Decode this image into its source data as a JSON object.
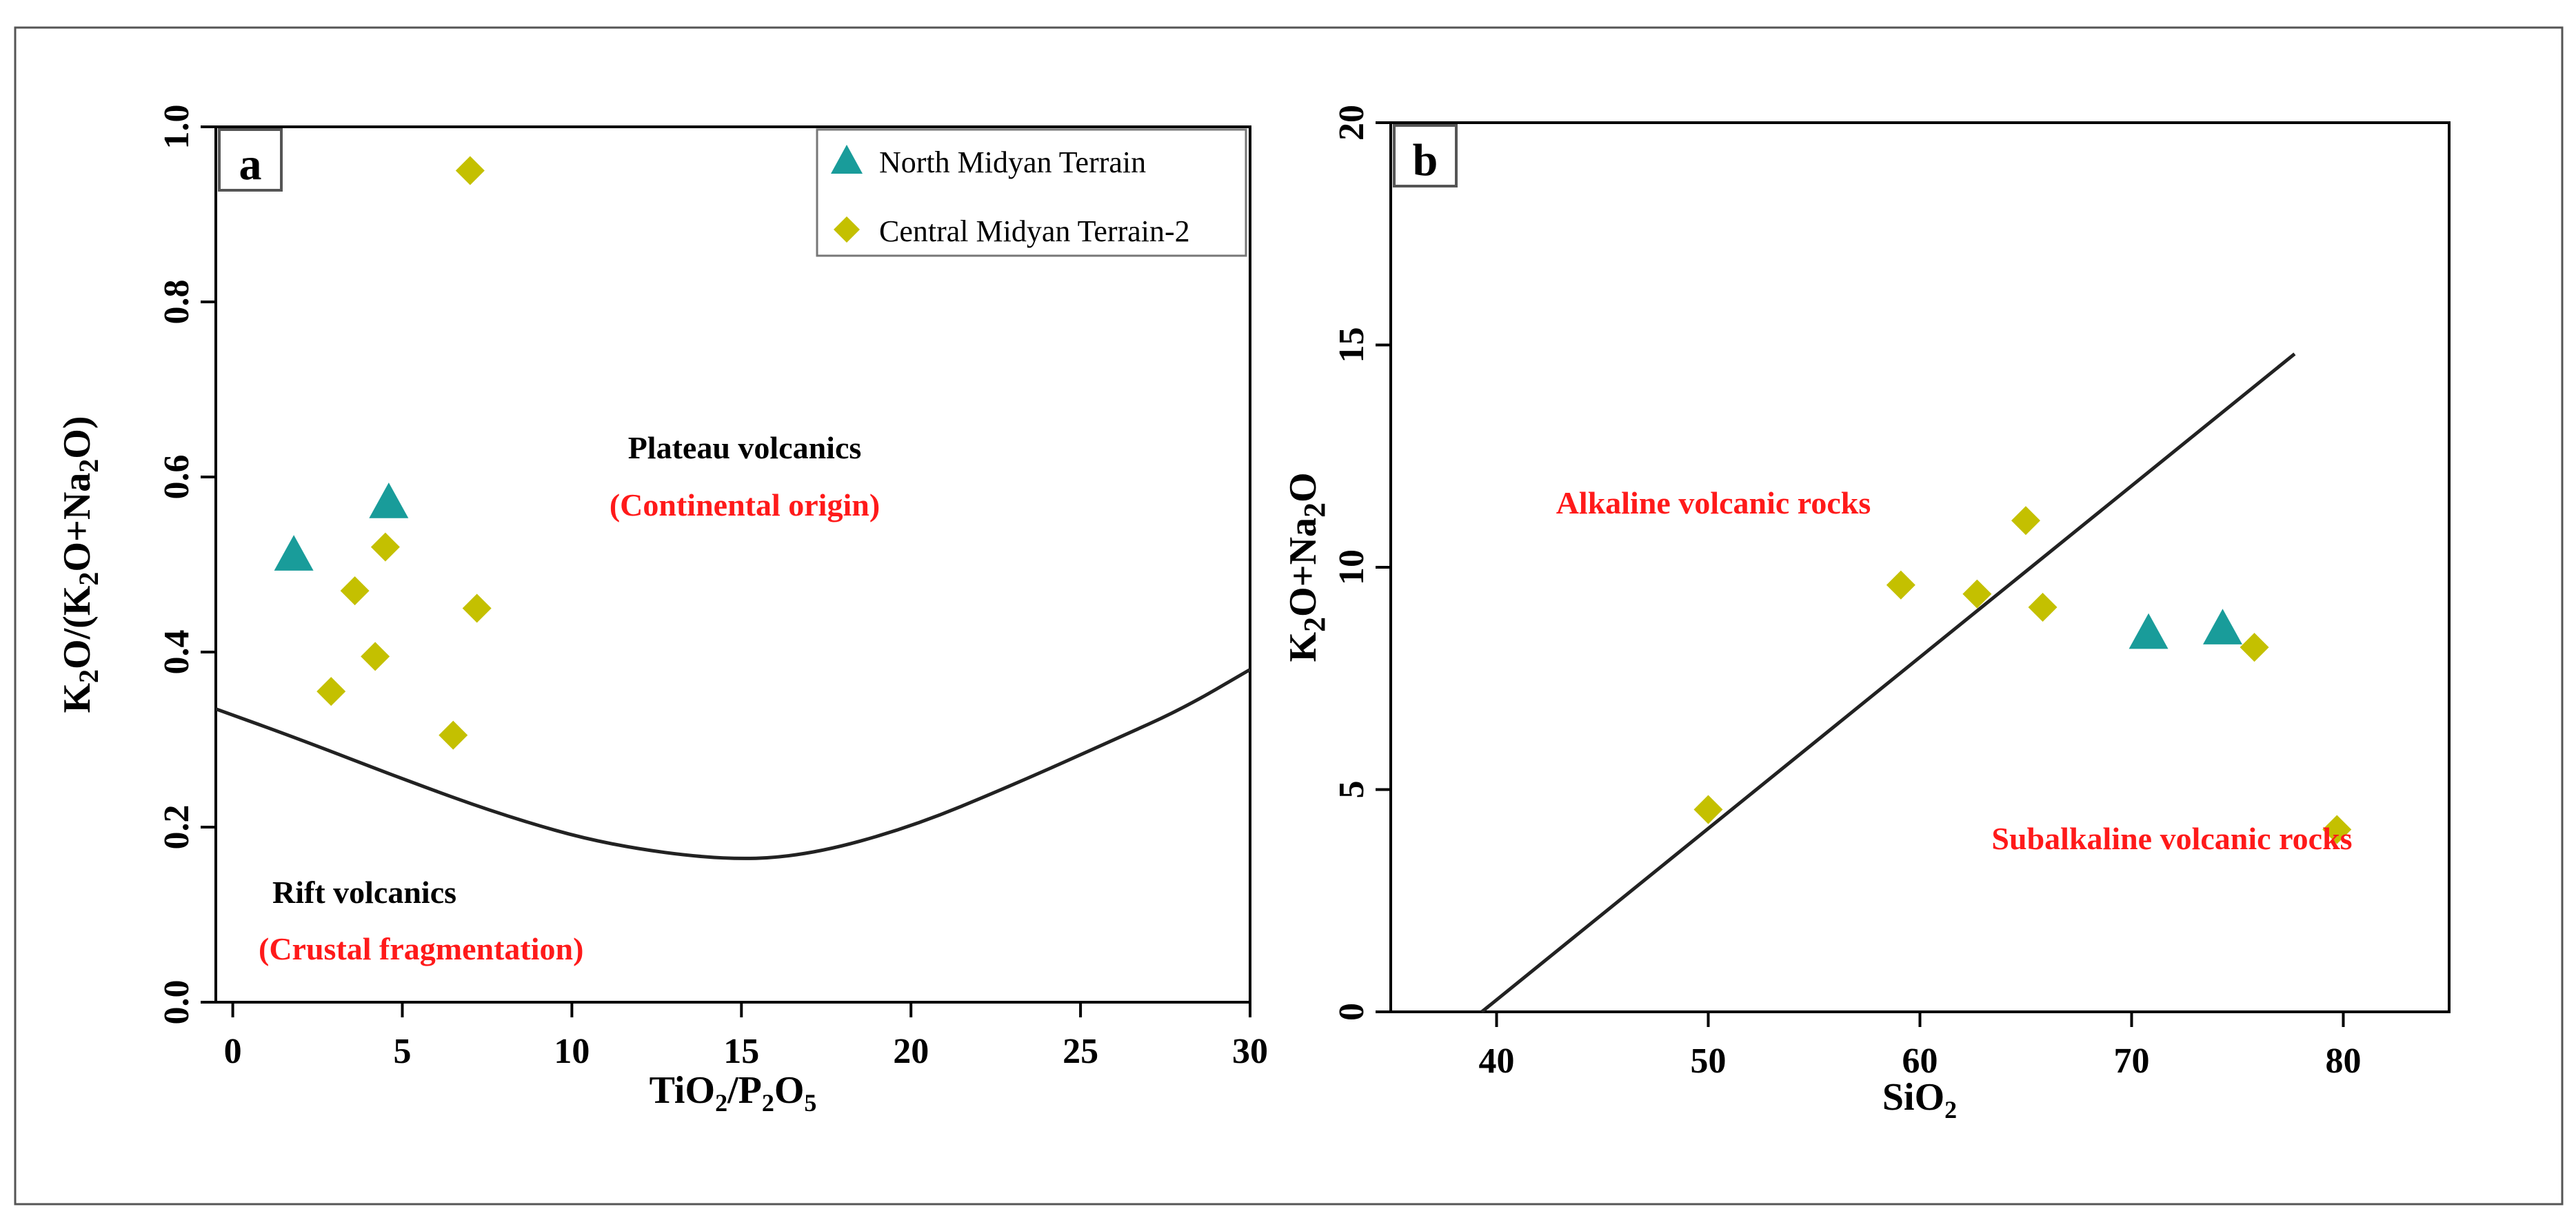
{
  "colors": {
    "north": "#199c9a",
    "central": "#c4c000",
    "annotation_red": "#ff1a1a",
    "axis": "#000000"
  },
  "chart_data": [
    {
      "panel": "a",
      "type": "scatter",
      "xlabel": "TiO2/P2O5",
      "ylabel": "K2O/(K2O+Na2O)",
      "xlim": [
        -0.5,
        30
      ],
      "ylim": [
        0,
        1
      ],
      "x_ticks": [
        0,
        5,
        10,
        15,
        20,
        25,
        30
      ],
      "x_tick_labels": [
        "0",
        "5",
        "10",
        "15",
        "20",
        "25",
        "30"
      ],
      "y_ticks": [
        0,
        0.2,
        0.4,
        0.6,
        0.8,
        1.0
      ],
      "y_tick_labels": [
        "0.0",
        "0.2",
        "0.4",
        "0.6",
        "0.8",
        "1.0"
      ],
      "legend": {
        "position": "top-right",
        "entries": [
          "North Midyan Terrain",
          "Central Midyan Terrain-2"
        ]
      },
      "series": [
        {
          "name": "North Midyan Terrain",
          "marker": "triangle",
          "points": [
            [
              1.8,
              0.51
            ],
            [
              4.6,
              0.57
            ]
          ]
        },
        {
          "name": "Central Midyan Terrain-2",
          "marker": "diamond",
          "points": [
            [
              7.0,
              0.95
            ],
            [
              4.5,
              0.52
            ],
            [
              3.6,
              0.47
            ],
            [
              7.2,
              0.45
            ],
            [
              4.2,
              0.395
            ],
            [
              2.9,
              0.355
            ],
            [
              6.5,
              0.305
            ]
          ]
        }
      ],
      "boundary_curve": {
        "name": "plateau-rift boundary",
        "points": [
          [
            -0.5,
            0.335
          ],
          [
            2,
            0.3
          ],
          [
            5,
            0.255
          ],
          [
            8,
            0.213
          ],
          [
            11,
            0.18
          ],
          [
            14.5,
            0.162
          ],
          [
            17,
            0.168
          ],
          [
            20,
            0.2
          ],
          [
            23,
            0.248
          ],
          [
            26,
            0.3
          ],
          [
            28,
            0.335
          ],
          [
            30,
            0.38
          ]
        ]
      },
      "annotations": {
        "plateau": "Plateau volcanics",
        "plateau_origin": "(Continental origin)",
        "rift": "Rift volcanics",
        "rift_origin": "(Crustal fragmentation)"
      }
    },
    {
      "panel": "b",
      "type": "scatter",
      "xlabel": "SiO2",
      "ylabel": "K2O+Na2O",
      "xlim": [
        35,
        85
      ],
      "ylim": [
        0,
        20
      ],
      "x_ticks": [
        40,
        50,
        60,
        70,
        80
      ],
      "x_tick_labels": [
        "40",
        "50",
        "60",
        "70",
        "80"
      ],
      "y_ticks": [
        0,
        5,
        10,
        15,
        20
      ],
      "y_tick_labels": [
        "0",
        "5",
        "10",
        "15",
        "20"
      ],
      "series": [
        {
          "name": "North Midyan Terrain",
          "marker": "triangle",
          "points": [
            [
              70.8,
              8.5
            ],
            [
              74.3,
              8.6
            ]
          ]
        },
        {
          "name": "Central Midyan Terrain-2",
          "marker": "diamond",
          "points": [
            [
              50.0,
              4.55
            ],
            [
              59.1,
              9.6
            ],
            [
              62.7,
              9.4
            ],
            [
              65.0,
              11.05
            ],
            [
              65.8,
              9.1
            ],
            [
              75.8,
              8.2
            ],
            [
              79.7,
              4.1
            ]
          ]
        }
      ],
      "boundary_line": {
        "name": "alkaline-subalkaline boundary",
        "points": [
          [
            39.3,
            0
          ],
          [
            77.7,
            14.8
          ]
        ]
      },
      "annotations": {
        "alkaline": "Alkaline volcanic rocks",
        "subalkaline": "Subalkaline volcanic rocks"
      }
    }
  ]
}
